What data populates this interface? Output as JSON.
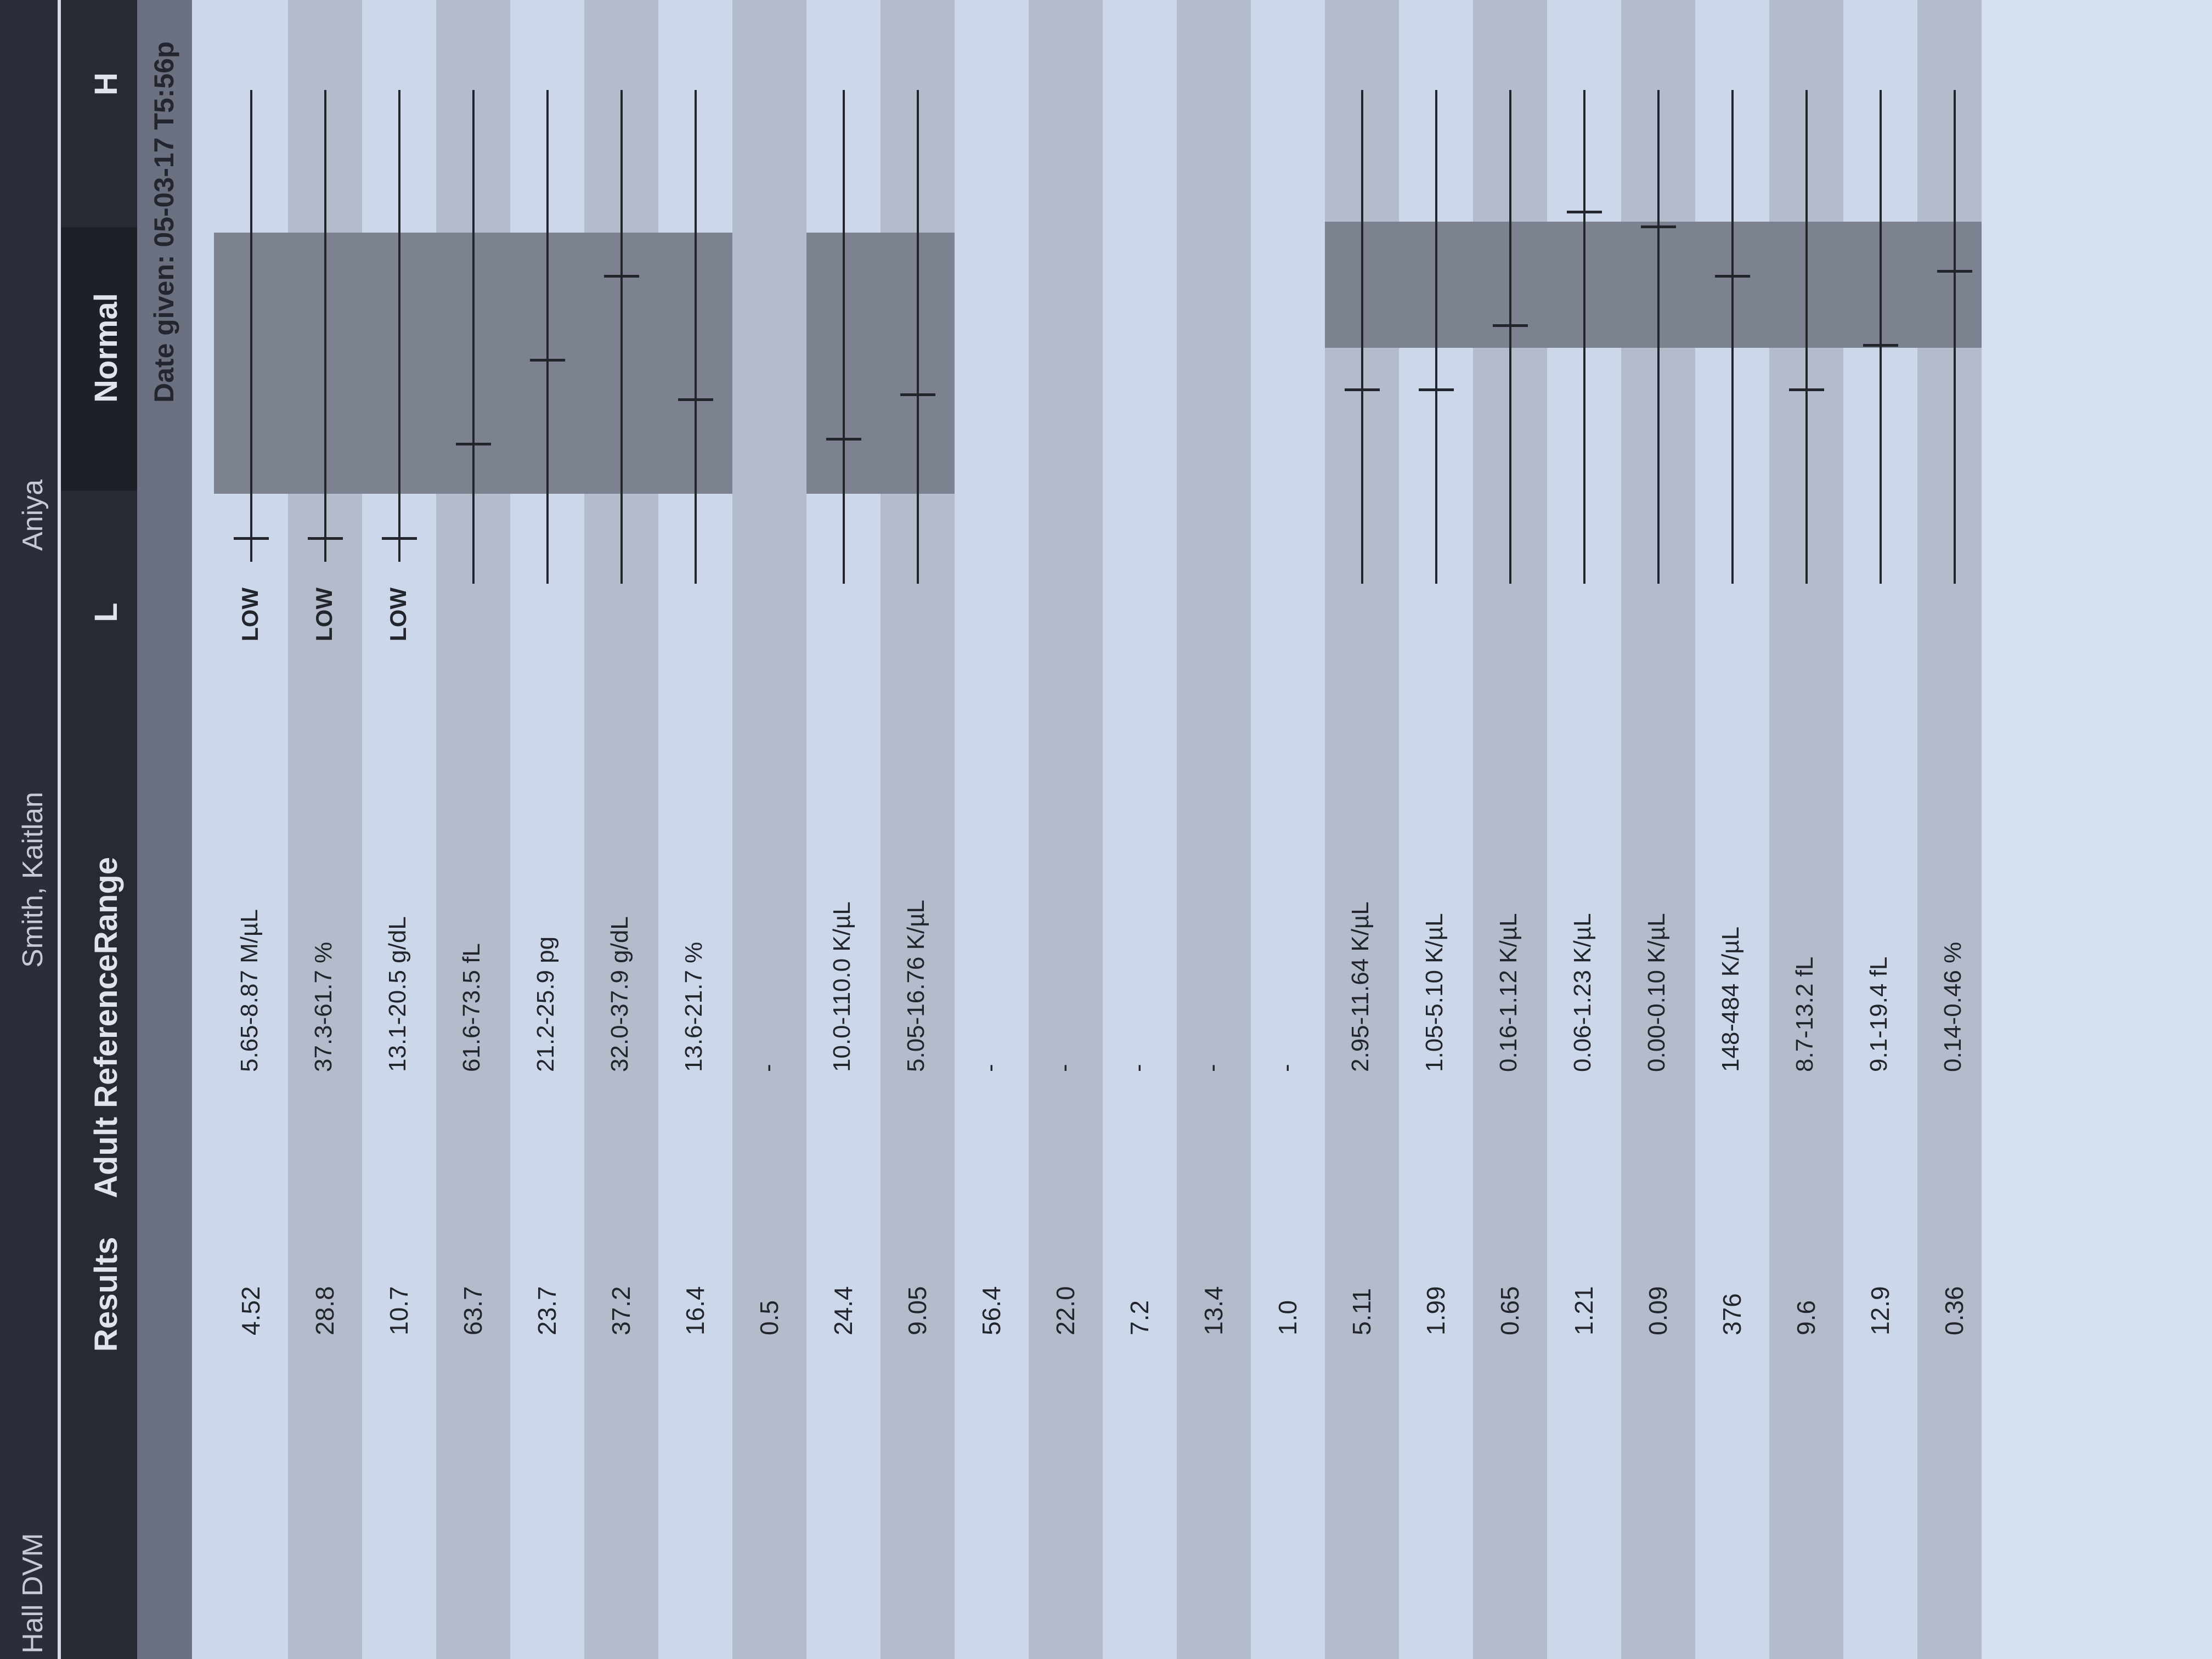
{
  "header": {
    "doctor": "Hall DVM",
    "owner": "Smith, Kaitlan",
    "patient": "Aniya",
    "columns": {
      "results": "Results",
      "reference": "Adult ReferenceRange",
      "low": "L",
      "normal": "Normal",
      "high": "H"
    },
    "date_given": "Date given: 05-03-17 T5:56p"
  },
  "colors": {
    "header": "#272a33",
    "normal_band": "#7c828f",
    "paper": "#cdd7ea"
  },
  "rows": [
    {
      "result": "4.52",
      "range": "5.65-8.87 M/µL",
      "flag": "LOW",
      "marker": 0.0,
      "graph": true,
      "band": true
    },
    {
      "result": "28.8",
      "range": "37.3-61.7 %",
      "flag": "LOW",
      "marker": 0.0,
      "graph": true,
      "band": true
    },
    {
      "result": "10.7",
      "range": "13.1-20.5 g/dL",
      "flag": "LOW",
      "marker": 0.0,
      "graph": true,
      "band": true
    },
    {
      "result": "63.7",
      "range": "61.6-73.5 fL",
      "flag": "",
      "marker": 0.28,
      "graph": true,
      "band": true
    },
    {
      "result": "23.7",
      "range": "21.2-25.9 pg",
      "flag": "",
      "marker": 0.45,
      "graph": true,
      "band": true
    },
    {
      "result": "37.2",
      "range": "32.0-37.9 g/dL",
      "flag": "",
      "marker": 0.62,
      "graph": true,
      "band": true
    },
    {
      "result": "16.4",
      "range": "13.6-21.7 %",
      "flag": "",
      "marker": 0.37,
      "graph": true,
      "band": true
    },
    {
      "result": "0.5",
      "range": "-",
      "flag": "",
      "graph": false,
      "band": false
    },
    {
      "result": "24.4",
      "range": "10.0-110.0 K/µL",
      "flag": "",
      "marker": 0.29,
      "graph": true,
      "band": true
    },
    {
      "result": "9.05",
      "range": "5.05-16.76 K/µL",
      "flag": "",
      "marker": 0.38,
      "graph": true,
      "band": true
    },
    {
      "result": "56.4",
      "range": "-",
      "flag": "",
      "graph": false,
      "band": false
    },
    {
      "result": "22.0",
      "range": "-",
      "flag": "",
      "graph": false,
      "band": false
    },
    {
      "result": "7.2",
      "range": "-",
      "flag": "",
      "graph": false,
      "band": false
    },
    {
      "result": "13.4",
      "range": "-",
      "flag": "",
      "graph": false,
      "band": false
    },
    {
      "result": "1.0",
      "range": "-",
      "flag": "",
      "graph": false,
      "band": false
    },
    {
      "result": "5.11",
      "range": "2.95-11.64 K/µL",
      "flag": "",
      "marker": 0.39,
      "graph": true,
      "band": true
    },
    {
      "result": "1.99",
      "range": "1.05-5.10 K/µL",
      "flag": "",
      "marker": 0.39,
      "graph": true,
      "band": true
    },
    {
      "result": "0.65",
      "range": "0.16-1.12 K/µL",
      "flag": "",
      "marker": 0.52,
      "graph": true,
      "band": true
    },
    {
      "result": "1.21",
      "range": "0.06-1.23 K/µL",
      "flag": "",
      "marker": 0.75,
      "graph": true,
      "band": true
    },
    {
      "result": "0.09",
      "range": "0.00-0.10 K/µL",
      "flag": "",
      "marker": 0.72,
      "graph": true,
      "band": true
    },
    {
      "result": "376",
      "range": "148-484 K/µL",
      "flag": "",
      "marker": 0.62,
      "graph": true,
      "band": true
    },
    {
      "result": "9.6",
      "range": "8.7-13.2 fL",
      "flag": "",
      "marker": 0.39,
      "graph": true,
      "band": true
    },
    {
      "result": "12.9",
      "range": "9.1-19.4 fL",
      "flag": "",
      "marker": 0.48,
      "graph": true,
      "band": true
    },
    {
      "result": "0.36",
      "range": "0.14-0.46 %",
      "flag": "",
      "marker": 0.63,
      "graph": true,
      "band": true
    }
  ]
}
